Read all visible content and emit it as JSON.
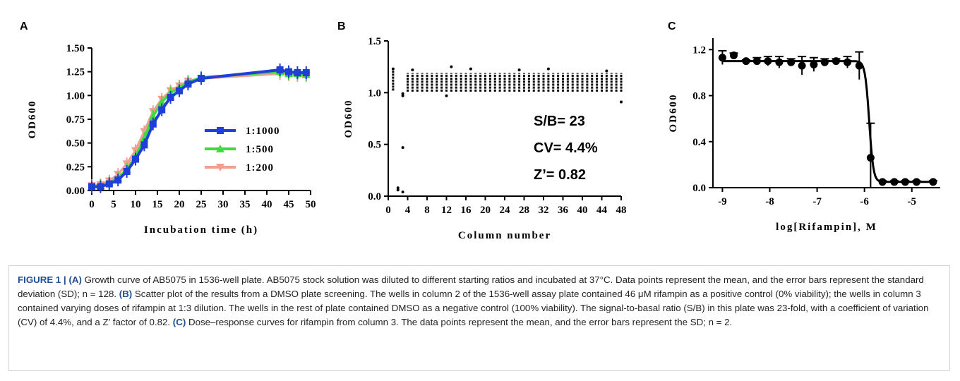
{
  "chart_data": [
    {
      "panel": "A",
      "type": "line",
      "xlabel": "Incubation time (h)",
      "ylabel": "OD600",
      "xlim": [
        0,
        50
      ],
      "ylim": [
        0,
        1.5
      ],
      "x_ticks": [
        "0",
        "5",
        "10",
        "15",
        "20",
        "25",
        "30",
        "35",
        "40",
        "45",
        "50"
      ],
      "y_ticks": [
        "0.00",
        "0.25",
        "0.50",
        "0.75",
        "1.00",
        "1.25",
        "1.50"
      ],
      "x": [
        0,
        2,
        4,
        6,
        8,
        10,
        12,
        14,
        16,
        18,
        20,
        22,
        25,
        43,
        45,
        47,
        49
      ],
      "series": [
        {
          "name": "1:1000",
          "color": "#1f3fd6",
          "marker": "square",
          "values": [
            0.04,
            0.04,
            0.07,
            0.11,
            0.2,
            0.33,
            0.48,
            0.7,
            0.85,
            0.98,
            1.05,
            1.12,
            1.18,
            1.27,
            1.25,
            1.24,
            1.24
          ]
        },
        {
          "name": "1:500",
          "color": "#3ddc3d",
          "marker": "triangle-up",
          "values": [
            0.04,
            0.05,
            0.08,
            0.13,
            0.22,
            0.36,
            0.55,
            0.78,
            0.93,
            1.03,
            1.08,
            1.14,
            1.19,
            1.25,
            1.23,
            1.23,
            1.22
          ]
        },
        {
          "name": "1:200",
          "color": "#f0a090",
          "marker": "triangle-down",
          "values": [
            0.05,
            0.06,
            0.1,
            0.17,
            0.28,
            0.42,
            0.62,
            0.83,
            0.96,
            1.05,
            1.1,
            1.15,
            1.18,
            1.23,
            1.22,
            1.21,
            1.21
          ]
        }
      ],
      "legend_position": "bottom-right"
    },
    {
      "panel": "B",
      "type": "scatter",
      "xlabel": "Column number",
      "ylabel": "OD600",
      "xlim": [
        0,
        48
      ],
      "ylim": [
        0,
        1.5
      ],
      "x_ticks": [
        "0",
        "4",
        "8",
        "12",
        "16",
        "20",
        "24",
        "28",
        "32",
        "36",
        "40",
        "44",
        "48"
      ],
      "y_ticks": [
        "0.0",
        "0.5",
        "1.0",
        "1.5"
      ],
      "columns": {
        "first": 1,
        "last": 48,
        "band_low": 1.01,
        "band_high": 1.19,
        "col1_range": [
          1.02,
          1.23
        ],
        "col2_points": [
          0.08,
          0.06
        ],
        "col3_points": [
          0.47,
          0.04,
          0.97,
          0.99
        ],
        "top_outliers": [
          [
            1,
            1.23
          ],
          [
            5,
            1.22
          ],
          [
            13,
            1.25
          ],
          [
            17,
            1.23
          ],
          [
            27,
            1.22
          ],
          [
            33,
            1.23
          ],
          [
            45,
            1.21
          ]
        ],
        "bottom_outliers": [
          [
            48,
            0.91
          ],
          [
            12,
            0.97
          ]
        ]
      },
      "annotations": [
        "S/B= 23",
        "CV= 4.4%",
        "Z’= 0.82"
      ]
    },
    {
      "panel": "C",
      "type": "scatter",
      "xlabel": "log[Rifampin], M",
      "ylabel": "OD600",
      "xlim": [
        -9.2,
        -4.4
      ],
      "ylim": [
        0,
        1.3
      ],
      "x_ticks": [
        "-9",
        "-8",
        "-7",
        "-6",
        "-5"
      ],
      "y_ticks": [
        "0.0",
        "0.4",
        "0.8",
        "1.2"
      ],
      "x": [
        -9.0,
        -8.76,
        -8.5,
        -8.27,
        -8.04,
        -7.8,
        -7.55,
        -7.32,
        -7.07,
        -6.84,
        -6.6,
        -6.36,
        -6.11,
        -5.87,
        -5.62,
        -5.37,
        -5.14,
        -4.9,
        -4.55
      ],
      "values": [
        1.13,
        1.15,
        1.1,
        1.1,
        1.1,
        1.09,
        1.09,
        1.06,
        1.07,
        1.09,
        1.1,
        1.09,
        1.06,
        0.26,
        0.05,
        0.05,
        0.05,
        0.05,
        0.05
      ],
      "errors": [
        0.06,
        0.02,
        0.01,
        0.03,
        0.04,
        0.05,
        0.03,
        0.08,
        0.06,
        0.03,
        0.02,
        0.05,
        0.12,
        0.3,
        0.01,
        0.01,
        0.01,
        0.01,
        0.01
      ],
      "fit": {
        "top": 1.1,
        "bottom": 0.05,
        "logIC50": -5.9,
        "hill": 10
      }
    }
  ],
  "panels": {
    "a": {
      "letter": "A",
      "ylabel": "OD600",
      "xlabel": "Incubation time (h)"
    },
    "b": {
      "letter": "B",
      "ylabel": "OD600",
      "xlabel": "Column number"
    },
    "c": {
      "letter": "C",
      "ylabel": "OD600",
      "xlabel": "log[Rifampin], M"
    }
  },
  "caption": {
    "figure_label": "FIGURE 1 |",
    "a_label": "(A)",
    "a_text": " Growth curve of AB5075 in 1536-well plate. AB5075 stock solution was diluted to different starting ratios and incubated at 37°C. Data points represent the mean, and the error bars represent the standard deviation (SD); n = 128. ",
    "b_label": "(B)",
    "b_text": " Scatter plot of the results from a DMSO plate screening. The wells in column 2 of the 1536-well assay plate contained 46 μM rifampin as a positive control (0% viability); the wells in column 3 contained varying doses of rifampin at 1:3 dilution. The wells in the rest of plate contained DMSO as a negative control (100% viability). The signal-to-basal ratio (S/B) in this plate was 23-fold, with a coefficient of variation (CV) of 4.4%, and a Z′ factor of 0.82. ",
    "c_label": "(C)",
    "c_text": " Dose–response curves for rifampin from column 3. The data points represent the mean, and the error bars represent the SD; n = 2."
  }
}
